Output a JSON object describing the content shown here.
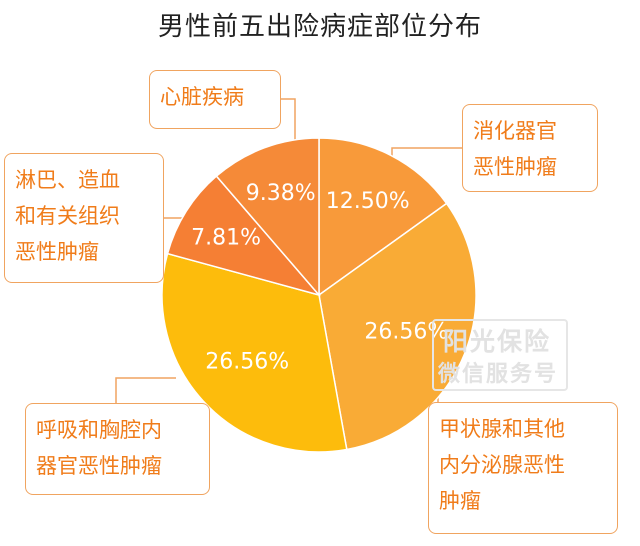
{
  "chart_data": {
    "type": "pie",
    "title": "男性前五出险病症部位分布",
    "slices": [
      {
        "name": "消化器官恶性肿瘤",
        "value": 12.5,
        "label": "12.50%",
        "color": "#f89a3a"
      },
      {
        "name": "甲状腺和其他内分泌腺恶性肿瘤",
        "value": 26.56,
        "label": "26.56%",
        "color": "#f9ab36"
      },
      {
        "name": "呼吸和胸腔内器官恶性肿瘤",
        "value": 26.56,
        "label": "26.56%",
        "color": "#fdbc0c"
      },
      {
        "name": "淋巴、造血和有关组织恶性肿瘤",
        "value": 7.81,
        "label": "7.81%",
        "color": "#f57f34"
      },
      {
        "name": "心脏疾病",
        "value": 9.38,
        "label": "9.38%",
        "color": "#f58a38"
      }
    ]
  },
  "callouts": {
    "heart": "心脏疾病",
    "digestive": "消化器官\n恶性肿瘤",
    "lymph": "淋巴、造血\n和有关组织\n恶性肿瘤",
    "respiratory": "呼吸和胸腔内\n器官恶性肿瘤",
    "thyroid": "甲状腺和其他\n内分泌腺恶性\n肿瘤"
  },
  "watermark": {
    "line1": "阳光保险",
    "line2": "微信服务号"
  },
  "colors": {
    "callout_border": "#f0a460",
    "callout_text": "#f07c1a",
    "leader_line": "#f0a460"
  }
}
